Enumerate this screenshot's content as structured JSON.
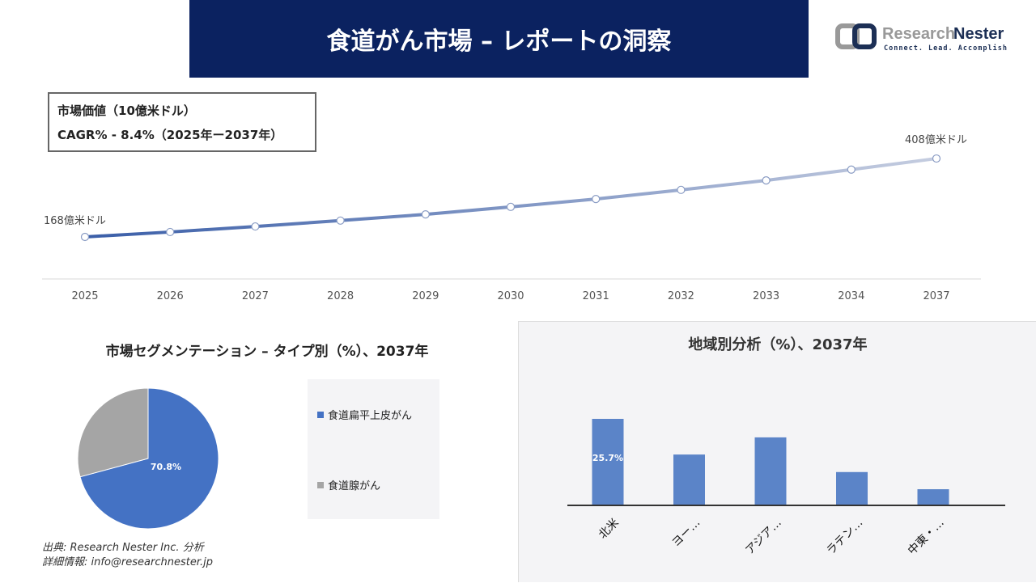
{
  "header": {
    "title": "食道がん市場 – レポートの洞察",
    "logo": {
      "name": "Research Nester",
      "tagline": "Connect. Lead. Accomplish"
    }
  },
  "kpi": {
    "line1": "市場価値（10億米ドル）",
    "line2": "CAGR% - 8.4%（2025年ー2037年）"
  },
  "colors": {
    "header": "#0b2260",
    "line_start": "#3a5ea8",
    "line_end": "#c5cde0",
    "blue": "#4472c4",
    "gray": "#a5a5a5",
    "bar": "#5b84c8"
  },
  "chart_data": [
    {
      "type": "line",
      "categories": [
        "2025",
        "2026",
        "2027",
        "2028",
        "2029",
        "2030",
        "2031",
        "2032",
        "2033",
        "2034",
        "2037"
      ],
      "values": [
        16.8,
        18.3,
        20.0,
        21.8,
        23.7,
        26.0,
        28.4,
        31.2,
        34.1,
        37.4,
        40.8
      ],
      "annotations": {
        "first": "168億米ドル",
        "last": "408億米ドル"
      },
      "grid": false
    },
    {
      "type": "pie",
      "title": "市場セグメンテーション – タイプ別（%）、2037年",
      "labels": [
        "食道扁平上皮がん",
        "食道腺がん"
      ],
      "values": [
        70.8,
        29.2
      ],
      "data_labels": [
        "70.8%",
        ""
      ],
      "legend": "right"
    },
    {
      "type": "bar",
      "title": "地域別分析（%）、2037年",
      "categories": [
        "北米",
        "ヨー…",
        "アジア…",
        "ラテン…",
        "中東・…"
      ],
      "values": [
        25.7,
        15.1,
        20.2,
        9.9,
        4.8
      ],
      "data_labels": [
        "25.7%",
        "",
        "",
        "",
        ""
      ]
    }
  ],
  "footer": {
    "source": "出典: Research Nester Inc. 分析",
    "contact": "詳細情報: info@researchnester.jp"
  }
}
